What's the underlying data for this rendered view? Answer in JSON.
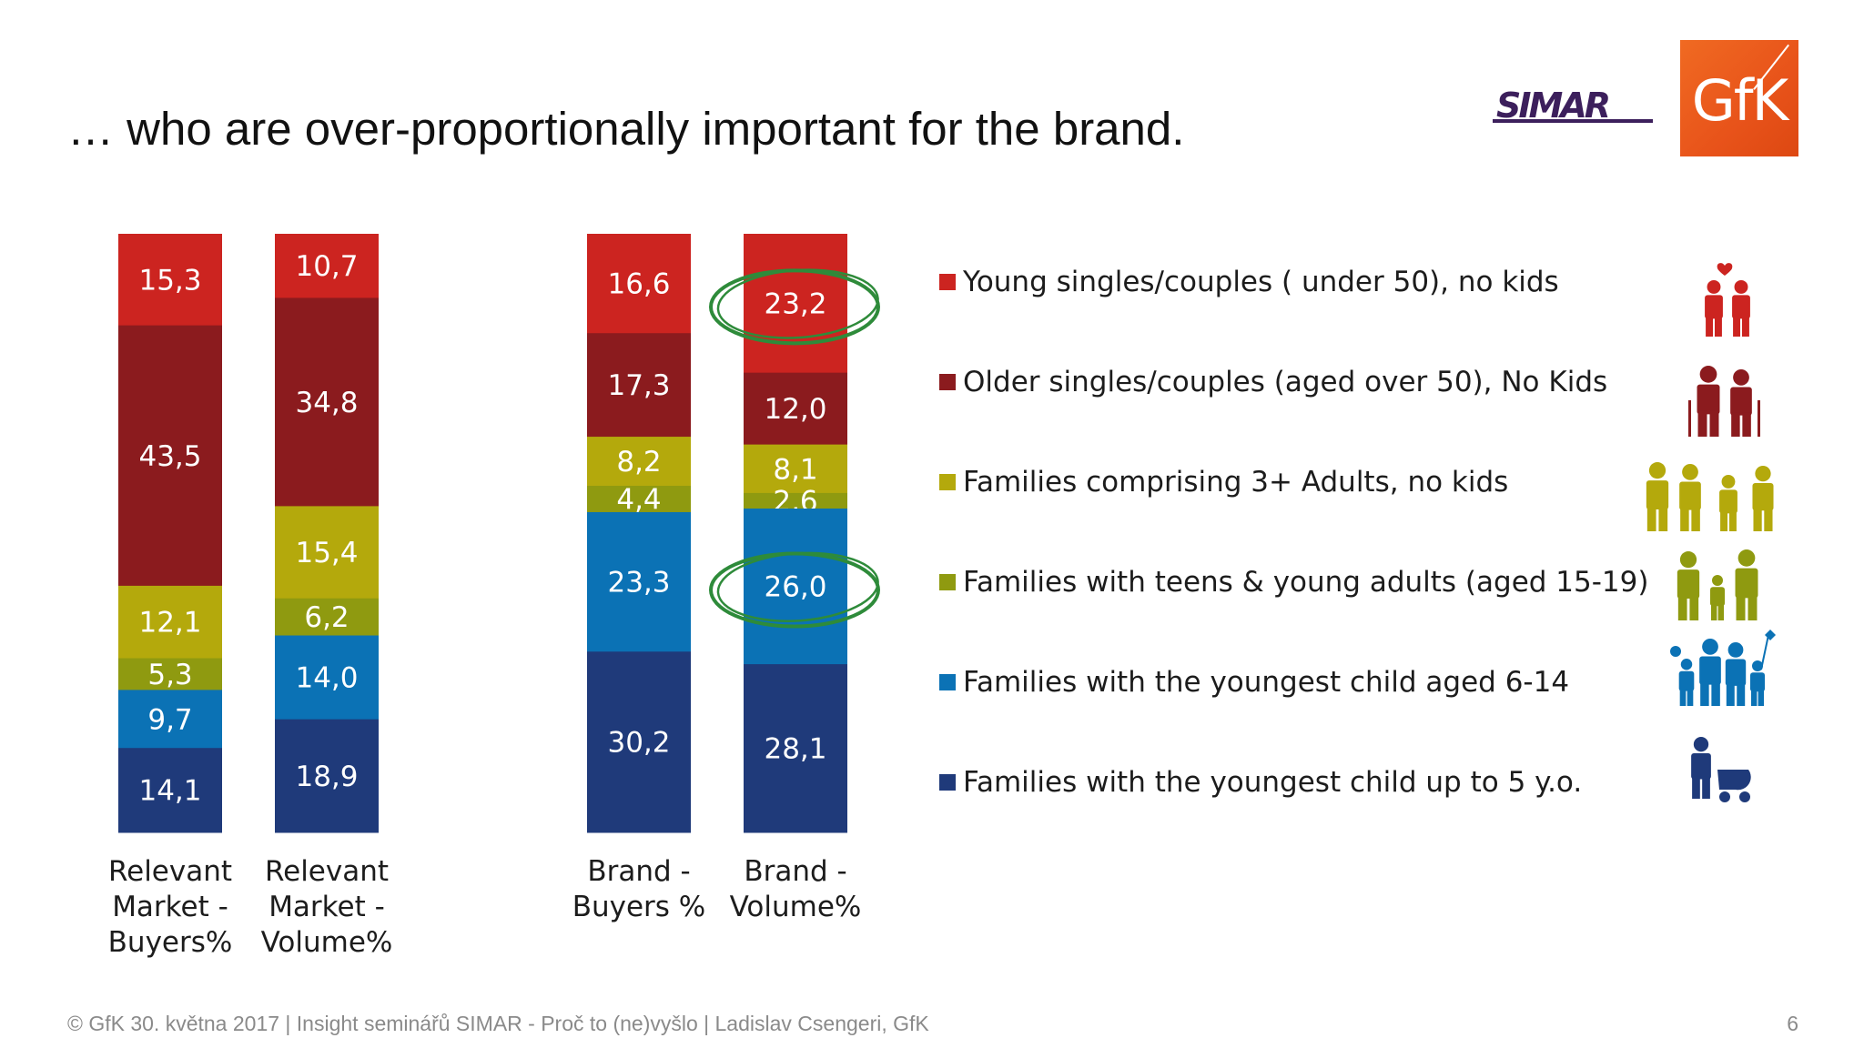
{
  "header": {
    "title": "… who are over-proportionally important for the brand.",
    "logo_simar": "SIMAR",
    "logo_gfk": "GfK"
  },
  "chart_data": {
    "type": "bar",
    "stacked": true,
    "unit": "%",
    "categories": [
      "Relevant Market - Buyers%",
      "Relevant Market - Volume%",
      "Brand - Buyers %",
      "Brand - Volume%"
    ],
    "category_label_lines": [
      [
        "Relevant",
        "Market -",
        "Buyers%"
      ],
      [
        "Relevant",
        "Market -",
        "Volume%"
      ],
      [
        "Brand -",
        "Buyers %"
      ],
      [
        "Brand -",
        "Volume%"
      ]
    ],
    "series": [
      {
        "name": "Young singles/couples ( under 50), no kids",
        "color": "#cc2420",
        "values": [
          15.3,
          10.7,
          16.6,
          23.2
        ],
        "labels": [
          "15,3",
          "10,7",
          "16,6",
          "23,2"
        ]
      },
      {
        "name": "Older singles/couples (aged over 50), No Kids",
        "color": "#8b1b1e",
        "values": [
          43.5,
          34.8,
          17.3,
          12.0
        ],
        "labels": [
          "43,5",
          "34,8",
          "17,3",
          "12,0"
        ]
      },
      {
        "name": "Families comprising 3+ Adults, no kids",
        "color": "#b4a90c",
        "values": [
          12.1,
          15.4,
          8.2,
          8.1
        ],
        "labels": [
          "12,1",
          "15,4",
          "8,2",
          "8,1"
        ]
      },
      {
        "name": "Families with teens & young adults (aged 15-19)",
        "color": "#8f9a10",
        "values": [
          5.3,
          6.2,
          4.4,
          2.6
        ],
        "labels": [
          "5,3",
          "6,2",
          "4,4",
          "2,6"
        ]
      },
      {
        "name": "Families with the youngest child aged 6-14",
        "color": "#0b72b5",
        "values": [
          9.7,
          14.0,
          23.3,
          26.0
        ],
        "labels": [
          "9,7",
          "14,0",
          "23,3",
          "26,0"
        ]
      },
      {
        "name": "Families with the youngest child up to 5 y.o.",
        "color": "#1f3a7a",
        "values": [
          14.1,
          18.9,
          30.2,
          28.1
        ],
        "labels": [
          "14,1",
          "18,9",
          "30,2",
          "28,1"
        ]
      }
    ],
    "highlighted": [
      {
        "category": "Brand - Volume%",
        "series": "Young singles/couples ( under 50), no kids"
      },
      {
        "category": "Brand - Volume%",
        "series": "Families with the youngest child aged 6-14"
      }
    ],
    "highlight_color": "#2e8b3a",
    "legend_position": "right"
  },
  "legend_icons": [
    "young-couple-icon",
    "elderly-couple-icon",
    "adult-family-icon",
    "teen-family-icon",
    "school-kids-family-icon",
    "mother-with-pram-icon"
  ],
  "footer": {
    "text": "© GfK 30. května 2017 | Insight seminářů SIMAR - Proč to (ne)vyšlo | Ladislav Csengeri, GfK",
    "page_number": "6"
  }
}
